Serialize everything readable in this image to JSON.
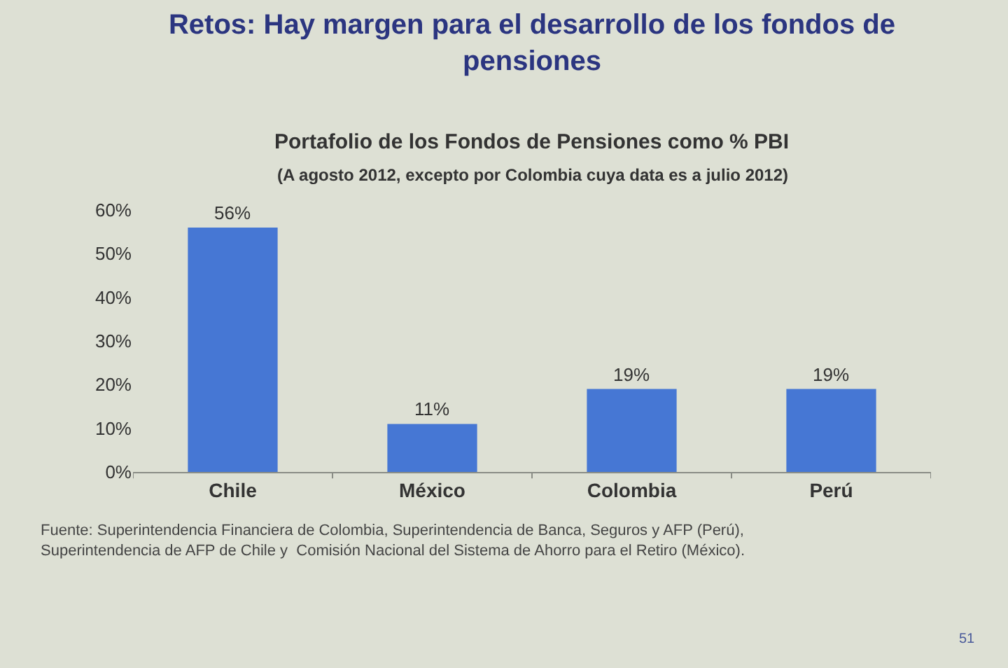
{
  "chart_data": {
    "type": "bar",
    "title": "Retos: Hay margen para el desarrollo de los fondos de pensiones",
    "subtitle": "Portafolio de los Fondos de Pensiones como % PBI",
    "annotations": [
      "(A agosto 2012, excepto por Colombia cuya data es a julio 2012)",
      "Fuente: Superintendencia Financiera de Colombia, Superintendencia de Banca, Seguros y AFP (Perú), Superintendencia de AFP de Chile y  Comisión Nacional del Sistema de Ahorro para el Retiro (México).",
      "51"
    ],
    "categories": [
      "Chile",
      "México",
      "Colombia",
      "Perú"
    ],
    "values": [
      56,
      11,
      19,
      19
    ],
    "value_labels": [
      "56%",
      "11%",
      "19%",
      "19%"
    ],
    "color": "#4677d4",
    "ylim": [
      0,
      60
    ],
    "yticks": [
      {
        "value": 0,
        "label": "0%"
      },
      {
        "value": 10,
        "label": "10%"
      },
      {
        "value": 20,
        "label": "20%"
      },
      {
        "value": 30,
        "label": "30%"
      },
      {
        "value": 40,
        "label": "40%"
      },
      {
        "value": 50,
        "label": "50%"
      },
      {
        "value": 60,
        "label": "60%"
      }
    ],
    "grid": false
  }
}
